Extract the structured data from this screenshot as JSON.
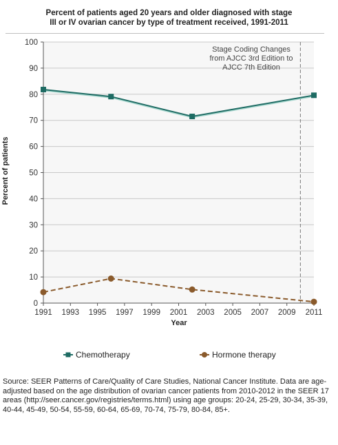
{
  "title_line1": "Percent of patients aged 20 years and older diagnosed with stage",
  "title_line2": "III or IV ovarian cancer  by type of treatment received, 1991-2011",
  "annotation": [
    "Stage Coding Changes",
    "from AJCC 3rd Edition to",
    "AJCC 7th Edition"
  ],
  "source_text": "Source: SEER Patterns of Care/Quality of Care Studies, National Cancer Institute. Data are age-adjusted based on the age distribution of ovarian cancer patients from 2010-2012 in the SEER 17 areas (http://seer.cancer.gov/registries/terms.html) using age groups: 20-24, 25-29, 30-34, 35-39, 40-44, 45-49, 50-54, 55-59, 60-64, 65-69, 70-74, 75-79, 80-84, 85+.",
  "chart_data": {
    "type": "line",
    "title": "Percent of patients aged 20 years and older diagnosed with stage III or IV ovarian cancer  by type of treatment received, 1991-2011",
    "xlabel": "Year",
    "ylabel": "Percent of patients",
    "xlim": [
      1991,
      2011
    ],
    "ylim": [
      0,
      100
    ],
    "xticks": [
      1991,
      1993,
      1995,
      1997,
      1999,
      2001,
      2003,
      2005,
      2007,
      2009,
      2011
    ],
    "yticks": [
      0,
      10,
      20,
      30,
      40,
      50,
      60,
      70,
      80,
      90,
      100
    ],
    "grid": "horizontal",
    "legend": "bottom",
    "reference_line": {
      "x": 2010,
      "style": "dashed"
    },
    "series": [
      {
        "name": "Chemotherapy",
        "color": "#1e6b63",
        "marker": "square",
        "line": "solid",
        "x": [
          1991,
          1996,
          2002,
          2011
        ],
        "y": [
          81.8,
          79.1,
          71.5,
          79.6
        ]
      },
      {
        "name": "Hormone therapy",
        "color": "#8a5a2b",
        "marker": "circle",
        "line": "dashed",
        "x": [
          1991,
          1996,
          2002,
          2011
        ],
        "y": [
          4.2,
          9.4,
          5.2,
          0.5
        ]
      }
    ]
  }
}
